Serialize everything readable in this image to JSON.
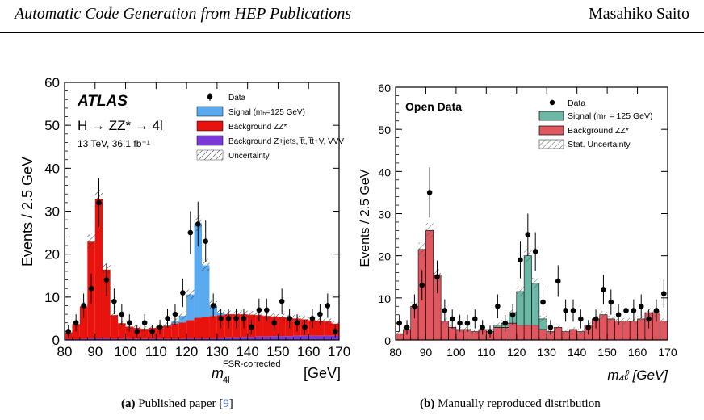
{
  "header": {
    "title": "Automatic Code Generation from HEP Publications",
    "author": "Masahiko Saito"
  },
  "captions": {
    "a": {
      "tag": "(a)",
      "text": "Published paper [",
      "ref": "9",
      "end": "]"
    },
    "b": {
      "tag": "(b)",
      "text": "Manually reproduced distribution"
    }
  },
  "chart_data": [
    {
      "type": "bar",
      "panel": "a",
      "brand": "ATLAS",
      "process_label": "H → ZZ* → 4l",
      "energy_label": "13 TeV, 36.1 fb⁻¹",
      "ylabel": "Events / 2.5 GeV",
      "xlabel_main": "m",
      "xlabel_super": "FSR-corrected",
      "xlabel_sub": "4l",
      "xlabel_unit": "[GeV]",
      "xlim": [
        80,
        170
      ],
      "ylim": [
        0,
        60
      ],
      "xticks": [
        "80",
        "90",
        "100",
        "110",
        "120",
        "130",
        "140",
        "150",
        "160",
        "170"
      ],
      "yticks": [
        "0",
        "10",
        "20",
        "30",
        "40",
        "50",
        "60"
      ],
      "bin_width": 2.5,
      "legend": [
        "Data",
        "Signal (mₕ=125 GeV)",
        "Background ZZ*",
        "Background Z+jets, t̅t, t̅t+V, VVV",
        "Uncertainty"
      ],
      "colors": {
        "signal": "#5aaaf0",
        "zz": "#e8130c",
        "other": "#7b3ad8",
        "data": "#000000"
      },
      "x": [
        81.25,
        83.75,
        86.25,
        88.75,
        91.25,
        93.75,
        96.25,
        98.75,
        101.25,
        103.75,
        106.25,
        108.75,
        111.25,
        113.75,
        116.25,
        118.75,
        121.25,
        123.75,
        126.25,
        128.75,
        131.25,
        133.75,
        136.25,
        138.75,
        141.25,
        143.75,
        146.25,
        148.75,
        151.25,
        153.75,
        156.25,
        158.75,
        161.25,
        163.75,
        166.25,
        168.75
      ],
      "series": [
        {
          "name": "Background Z+jets, t̅t, t̅t+V, VVV",
          "values": [
            0.2,
            0.2,
            0.3,
            0.4,
            0.4,
            0.4,
            0.3,
            0.3,
            0.3,
            0.3,
            0.3,
            0.3,
            0.3,
            0.3,
            0.3,
            0.3,
            0.4,
            0.4,
            0.4,
            0.4,
            0.5,
            0.6,
            0.6,
            0.7,
            0.7,
            0.8,
            0.8,
            0.9,
            0.9,
            0.9,
            1.0,
            1.0,
            1.0,
            1.0,
            1.0,
            1.0
          ]
        },
        {
          "name": "Background ZZ*",
          "values": [
            1.5,
            3.5,
            7.5,
            22.5,
            32.5,
            16.0,
            5.5,
            3.6,
            2.8,
            2.5,
            2.3,
            2.5,
            2.9,
            3.0,
            3.5,
            3.8,
            4.2,
            4.8,
            5.0,
            5.2,
            5.3,
            5.4,
            5.4,
            5.3,
            5.2,
            5.0,
            4.8,
            4.6,
            4.4,
            4.2,
            4.0,
            3.8,
            3.6,
            3.5,
            3.3,
            2.8
          ]
        },
        {
          "name": "Signal (mₕ=125 GeV)",
          "values": [
            0,
            0,
            0,
            0,
            0,
            0,
            0,
            0,
            0,
            0,
            0,
            0,
            0,
            0.2,
            0.5,
            1.5,
            6.0,
            22.0,
            12.0,
            2.5,
            0.5,
            0,
            0,
            0,
            0,
            0,
            0,
            0,
            0,
            0,
            0,
            0,
            0,
            0,
            0,
            0
          ]
        },
        {
          "name": "Data",
          "values": [
            2,
            4,
            8,
            12,
            32,
            14,
            9,
            6,
            4,
            2,
            4,
            2,
            3,
            5,
            6,
            11,
            25,
            27,
            23,
            8,
            5,
            5,
            5,
            5,
            3,
            7,
            7,
            4,
            9,
            5,
            4,
            3,
            5,
            6,
            8,
            2
          ]
        }
      ]
    },
    {
      "type": "bar",
      "panel": "b",
      "brand": "Open Data",
      "ylabel": "Events / 2.5 GeV",
      "xlabel": "m₄ℓ [GeV]",
      "xlim": [
        80,
        170
      ],
      "ylim": [
        0,
        60
      ],
      "xticks": [
        "80",
        "90",
        "100",
        "110",
        "120",
        "130",
        "140",
        "150",
        "160",
        "170"
      ],
      "yticks": [
        "0",
        "10",
        "20",
        "30",
        "40",
        "50",
        "60"
      ],
      "bin_width": 2.5,
      "legend": [
        "Data",
        "Signal (mₕ = 125 GeV)",
        "Background ZZ*",
        "Stat. Uncertainty"
      ],
      "colors": {
        "signal": "#6bb8a7",
        "zz": "#e05760",
        "data": "#000000"
      },
      "x": [
        81.25,
        83.75,
        86.25,
        88.75,
        91.25,
        93.75,
        96.25,
        98.75,
        101.25,
        103.75,
        106.25,
        108.75,
        111.25,
        113.75,
        116.25,
        118.75,
        121.25,
        123.75,
        126.25,
        128.75,
        131.25,
        133.75,
        136.25,
        138.75,
        141.25,
        143.75,
        146.25,
        148.75,
        151.25,
        153.75,
        156.25,
        158.75,
        161.25,
        163.75,
        166.25,
        168.75
      ],
      "series": [
        {
          "name": "Background ZZ*",
          "values": [
            1.5,
            2.5,
            8.0,
            21.5,
            26.0,
            15.5,
            4.5,
            3.0,
            2.5,
            2.5,
            2.0,
            2.5,
            2.0,
            3.0,
            3.0,
            4.0,
            3.5,
            3.5,
            3.5,
            2.5,
            2.0,
            3.0,
            2.0,
            2.5,
            2.0,
            3.5,
            5.0,
            6.0,
            5.0,
            4.5,
            4.5,
            4.5,
            5.0,
            6.5,
            6.5,
            4.5
          ]
        },
        {
          "name": "Signal (mₕ = 125 GeV)",
          "values": [
            0,
            0,
            0,
            0,
            0,
            0,
            0,
            0,
            0,
            0,
            0,
            0,
            0,
            0.5,
            1.0,
            2.5,
            8.0,
            16.5,
            10.0,
            2.5,
            0,
            0,
            0,
            0,
            0,
            0,
            0,
            0,
            0,
            0,
            0,
            0,
            0,
            0,
            0,
            0
          ]
        },
        {
          "name": "Data",
          "values": [
            4,
            3,
            8,
            13,
            35,
            15,
            7,
            5,
            4,
            4,
            5,
            3,
            2,
            8,
            4,
            6,
            19,
            25,
            21,
            9,
            3,
            14,
            7,
            7,
            5,
            3,
            5,
            12,
            9,
            6,
            7,
            7,
            8,
            5,
            7,
            11
          ]
        }
      ]
    }
  ]
}
